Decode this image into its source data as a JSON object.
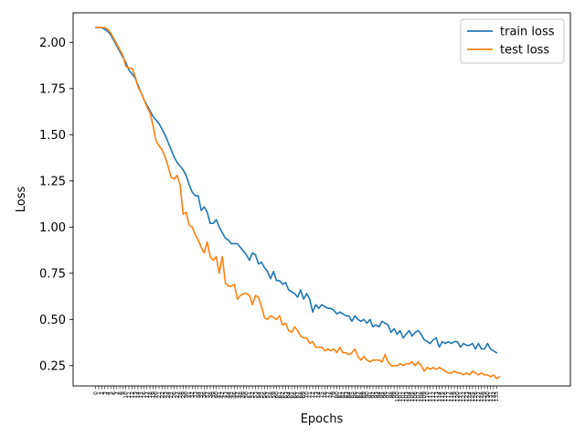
{
  "chart_data": {
    "type": "line",
    "title": "",
    "xlabel": "Epochs",
    "ylabel": "Loss",
    "xlim": [
      -7.5,
      157.5
    ],
    "ylim": [
      0.14,
      2.16
    ],
    "y_ticks": [
      0.25,
      0.5,
      0.75,
      1.0,
      1.25,
      1.5,
      1.75,
      2.0
    ],
    "y_tick_labels": [
      "0.25",
      "0.50",
      "0.75",
      "1.00",
      "1.25",
      "1.50",
      "1.75",
      "2.00"
    ],
    "x_ticks_every": 1,
    "grid": false,
    "legend_position": "top-right",
    "series": [
      {
        "name": "train loss",
        "color": "#1f77b4",
        "values": [
          2.08,
          2.08,
          2.08,
          2.07,
          2.06,
          2.04,
          2.01,
          1.98,
          1.95,
          1.92,
          1.89,
          1.85,
          1.83,
          1.81,
          1.77,
          1.73,
          1.69,
          1.66,
          1.63,
          1.6,
          1.58,
          1.56,
          1.53,
          1.5,
          1.46,
          1.42,
          1.38,
          1.35,
          1.33,
          1.31,
          1.28,
          1.23,
          1.19,
          1.17,
          1.17,
          1.09,
          1.11,
          1.08,
          1.02,
          1.02,
          1.04,
          1.0,
          0.97,
          0.94,
          0.93,
          0.91,
          0.91,
          0.91,
          0.89,
          0.87,
          0.85,
          0.82,
          0.86,
          0.85,
          0.8,
          0.81,
          0.78,
          0.76,
          0.72,
          0.76,
          0.71,
          0.71,
          0.69,
          0.7,
          0.66,
          0.65,
          0.64,
          0.62,
          0.66,
          0.61,
          0.64,
          0.61,
          0.54,
          0.58,
          0.56,
          0.58,
          0.57,
          0.56,
          0.56,
          0.55,
          0.53,
          0.54,
          0.53,
          0.52,
          0.52,
          0.49,
          0.52,
          0.5,
          0.49,
          0.5,
          0.48,
          0.5,
          0.46,
          0.47,
          0.46,
          0.49,
          0.48,
          0.47,
          0.43,
          0.45,
          0.42,
          0.44,
          0.4,
          0.42,
          0.44,
          0.41,
          0.43,
          0.44,
          0.42,
          0.39,
          0.38,
          0.37,
          0.39,
          0.4,
          0.35,
          0.38,
          0.37,
          0.38,
          0.37,
          0.38,
          0.38,
          0.35,
          0.37,
          0.36,
          0.36,
          0.37,
          0.34,
          0.37,
          0.34,
          0.34,
          0.37,
          0.34,
          0.33,
          0.32
        ]
      },
      {
        "name": "test loss",
        "color": "#ff7f0e",
        "values": [
          2.08,
          2.08,
          2.08,
          2.08,
          2.07,
          2.05,
          2.02,
          1.99,
          1.96,
          1.93,
          1.87,
          1.86,
          1.86,
          1.82,
          1.76,
          1.73,
          1.69,
          1.65,
          1.62,
          1.55,
          1.47,
          1.44,
          1.42,
          1.38,
          1.33,
          1.27,
          1.26,
          1.28,
          1.23,
          1.07,
          1.08,
          1.01,
          1.0,
          0.96,
          0.93,
          0.89,
          0.86,
          0.92,
          0.84,
          0.82,
          0.84,
          0.75,
          0.84,
          0.7,
          0.68,
          0.68,
          0.69,
          0.61,
          0.63,
          0.64,
          0.64,
          0.63,
          0.58,
          0.63,
          0.62,
          0.57,
          0.51,
          0.5,
          0.52,
          0.51,
          0.5,
          0.52,
          0.47,
          0.48,
          0.44,
          0.43,
          0.46,
          0.44,
          0.41,
          0.4,
          0.4,
          0.37,
          0.38,
          0.35,
          0.35,
          0.35,
          0.33,
          0.34,
          0.33,
          0.34,
          0.32,
          0.35,
          0.32,
          0.32,
          0.31,
          0.32,
          0.34,
          0.3,
          0.28,
          0.3,
          0.28,
          0.27,
          0.28,
          0.28,
          0.28,
          0.27,
          0.31,
          0.27,
          0.25,
          0.25,
          0.25,
          0.26,
          0.25,
          0.26,
          0.26,
          0.27,
          0.25,
          0.27,
          0.25,
          0.22,
          0.24,
          0.23,
          0.24,
          0.23,
          0.24,
          0.23,
          0.22,
          0.21,
          0.21,
          0.22,
          0.21,
          0.21,
          0.2,
          0.21,
          0.2,
          0.22,
          0.21,
          0.2,
          0.21,
          0.2,
          0.2,
          0.19,
          0.2,
          0.18,
          0.19
        ]
      }
    ]
  }
}
